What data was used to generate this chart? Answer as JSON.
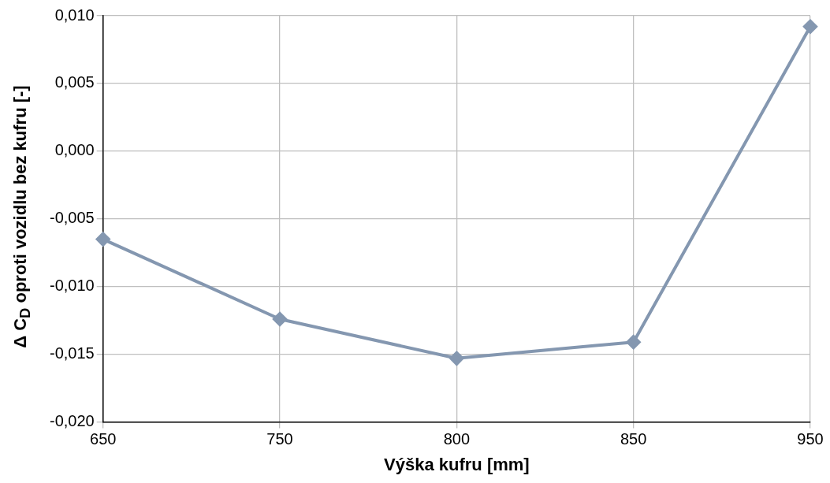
{
  "chart_data": {
    "type": "line",
    "xlabel": "Výška kufru [mm]",
    "ylabel": "Δ C$_{D}$ oproti vozidlu bez kufru [-]",
    "categories": [
      "650",
      "750",
      "800",
      "850",
      "950"
    ],
    "series": [
      {
        "color": "#8497b0",
        "values": [
          -0.0065,
          -0.0124,
          -0.0153,
          -0.0141,
          0.0092
        ]
      }
    ],
    "ylim": [
      -0.02,
      0.01
    ],
    "yticks": [
      {
        "value": -0.02,
        "label": "-0,020"
      },
      {
        "value": -0.015,
        "label": "-0,015"
      },
      {
        "value": -0.01,
        "label": "-0,010"
      },
      {
        "value": -0.005,
        "label": "-0,005"
      },
      {
        "value": 0,
        "label": "0,000"
      },
      {
        "value": 0.005,
        "label": "0,005"
      },
      {
        "value": 0.01,
        "label": "0,010"
      }
    ],
    "grid": true,
    "legend": false,
    "marker": "diamond",
    "line_style": "solid"
  }
}
